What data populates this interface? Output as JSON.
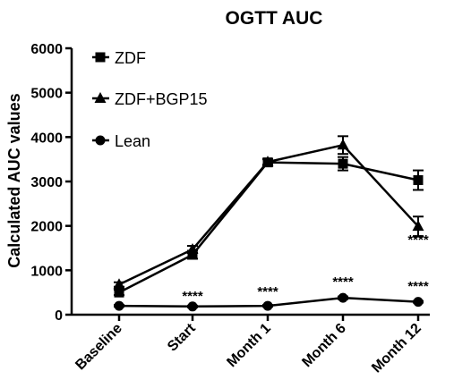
{
  "chart_data": {
    "type": "line",
    "title": "OGTT AUC",
    "xlabel": "",
    "ylabel": "Calculated AUC values",
    "categories": [
      "Baseline",
      "Start",
      "Month 1",
      "Month 6",
      "Month 12"
    ],
    "ylim": [
      0,
      6000
    ],
    "yticks": [
      0,
      1000,
      2000,
      3000,
      4000,
      5000,
      6000
    ],
    "legend_position": "top-left",
    "grid": false,
    "series": [
      {
        "name": "ZDF",
        "marker": "square",
        "values": [
          500,
          1350,
          3430,
          3400,
          3030
        ],
        "errors": [
          60,
          90,
          80,
          150,
          220
        ]
      },
      {
        "name": "ZDF+BGP15",
        "marker": "triangle",
        "values": [
          680,
          1470,
          3440,
          3820,
          1990
        ],
        "errors": [
          50,
          80,
          60,
          200,
          220
        ]
      },
      {
        "name": "Lean",
        "marker": "circle",
        "values": [
          200,
          185,
          200,
          380,
          290
        ],
        "errors": [
          20,
          20,
          20,
          30,
          20
        ]
      }
    ],
    "annotations": [
      {
        "category": "Start",
        "text": "****"
      },
      {
        "category": "Month 1",
        "text": "****"
      },
      {
        "category": "Month 6",
        "text": "****"
      },
      {
        "category": "Month 12",
        "text": "****"
      },
      {
        "category": "Month 12",
        "text": "****"
      }
    ]
  }
}
